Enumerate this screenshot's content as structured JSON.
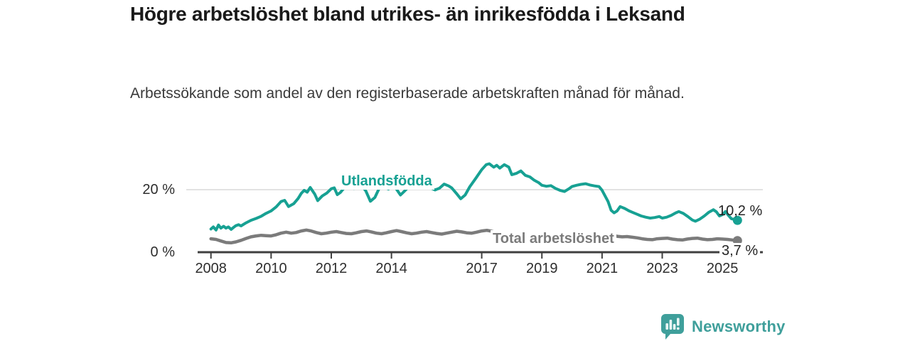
{
  "chart_data": {
    "type": "line",
    "title": "Högre arbetslöshet bland utrikes- än inrikesfödda i Leksand",
    "subtitle": "Arbetssökande som andel av den registerbaserade arbetskraften månad för månad.",
    "unit": "%",
    "grid": "horizontal gridline at 20 % only, x-axis baseline at 0 %",
    "legend_position": "inline-labels-on-lines",
    "xlim": [
      2008,
      2025.6
    ],
    "ylim": [
      0,
      30
    ],
    "yticks": [
      {
        "value": 20,
        "label": "20 %"
      },
      {
        "value": 0,
        "label": "0 %"
      }
    ],
    "xticks": [
      {
        "value": 2008,
        "label": "2008"
      },
      {
        "value": 2010,
        "label": "2010"
      },
      {
        "value": 2012,
        "label": "2012"
      },
      {
        "value": 2014,
        "label": "2014"
      },
      {
        "value": 2017,
        "label": "2017"
      },
      {
        "value": 2019,
        "label": "2019"
      },
      {
        "value": 2021,
        "label": "2021"
      },
      {
        "value": 2023,
        "label": "2023"
      },
      {
        "value": 2025,
        "label": "2025"
      }
    ],
    "colors": {
      "axis": "#3f3f3f",
      "grid": "#d8d8d8",
      "tick_text": "#2e2e2e"
    },
    "series": [
      {
        "id": "utlandsfodda",
        "name": "Utlandsfödda",
        "color": "#17a193",
        "end_label": "10,2 %",
        "end_value": 10.2,
        "points": [
          [
            2008.0,
            7.4
          ],
          [
            2008.08,
            8.1
          ],
          [
            2008.17,
            7.1
          ],
          [
            2008.25,
            8.7
          ],
          [
            2008.33,
            7.7
          ],
          [
            2008.42,
            8.3
          ],
          [
            2008.5,
            7.7
          ],
          [
            2008.58,
            8.1
          ],
          [
            2008.67,
            7.3
          ],
          [
            2008.75,
            7.9
          ],
          [
            2008.83,
            8.5
          ],
          [
            2008.92,
            8.8
          ],
          [
            2009.0,
            8.4
          ],
          [
            2009.17,
            9.4
          ],
          [
            2009.33,
            10.2
          ],
          [
            2009.5,
            10.8
          ],
          [
            2009.67,
            11.5
          ],
          [
            2009.83,
            12.4
          ],
          [
            2010.0,
            13.2
          ],
          [
            2010.17,
            14.5
          ],
          [
            2010.33,
            16.2
          ],
          [
            2010.45,
            16.6
          ],
          [
            2010.58,
            14.6
          ],
          [
            2010.75,
            15.5
          ],
          [
            2010.9,
            17.2
          ],
          [
            2011.0,
            18.8
          ],
          [
            2011.1,
            19.8
          ],
          [
            2011.2,
            19.2
          ],
          [
            2011.3,
            20.7
          ],
          [
            2011.45,
            18.6
          ],
          [
            2011.55,
            16.5
          ],
          [
            2011.7,
            18.0
          ],
          [
            2011.85,
            18.9
          ],
          [
            2012.0,
            20.3
          ],
          [
            2012.1,
            20.6
          ],
          [
            2012.2,
            18.4
          ],
          [
            2012.3,
            19.1
          ],
          [
            2012.45,
            20.8
          ],
          [
            2012.6,
            21.3
          ],
          [
            2012.75,
            20.4
          ],
          [
            2012.9,
            21.2
          ],
          [
            2013.0,
            21.4
          ],
          [
            2013.15,
            19.6
          ],
          [
            2013.3,
            16.3
          ],
          [
            2013.45,
            17.5
          ],
          [
            2013.6,
            20.6
          ],
          [
            2013.75,
            20.9
          ],
          [
            2013.9,
            20.2
          ],
          [
            2014.0,
            21.0
          ],
          [
            2014.15,
            20.4
          ],
          [
            2014.3,
            18.3
          ],
          [
            2014.45,
            19.7
          ],
          [
            2014.6,
            21.2
          ],
          [
            2014.75,
            21.5
          ],
          [
            2014.9,
            20.8
          ],
          [
            2015.0,
            21.2
          ],
          [
            2015.15,
            21.7
          ],
          [
            2015.3,
            20.6
          ],
          [
            2015.45,
            19.9
          ],
          [
            2015.6,
            20.5
          ],
          [
            2015.75,
            21.8
          ],
          [
            2015.9,
            21.2
          ],
          [
            2016.0,
            20.6
          ],
          [
            2016.15,
            18.9
          ],
          [
            2016.3,
            17.1
          ],
          [
            2016.45,
            18.3
          ],
          [
            2016.6,
            20.9
          ],
          [
            2016.8,
            23.6
          ],
          [
            2017.0,
            26.4
          ],
          [
            2017.15,
            28.0
          ],
          [
            2017.25,
            28.3
          ],
          [
            2017.4,
            27.2
          ],
          [
            2017.5,
            27.8
          ],
          [
            2017.6,
            26.9
          ],
          [
            2017.75,
            28.0
          ],
          [
            2017.9,
            27.2
          ],
          [
            2018.0,
            24.8
          ],
          [
            2018.15,
            25.2
          ],
          [
            2018.3,
            26.0
          ],
          [
            2018.45,
            24.6
          ],
          [
            2018.6,
            24.1
          ],
          [
            2018.75,
            23.0
          ],
          [
            2018.9,
            22.2
          ],
          [
            2019.0,
            21.4
          ],
          [
            2019.15,
            21.1
          ],
          [
            2019.3,
            21.3
          ],
          [
            2019.45,
            20.4
          ],
          [
            2019.6,
            19.8
          ],
          [
            2019.75,
            19.4
          ],
          [
            2019.9,
            20.3
          ],
          [
            2020.0,
            21.0
          ],
          [
            2020.15,
            21.4
          ],
          [
            2020.3,
            21.7
          ],
          [
            2020.45,
            21.9
          ],
          [
            2020.6,
            21.5
          ],
          [
            2020.75,
            21.2
          ],
          [
            2020.9,
            21.0
          ],
          [
            2021.0,
            19.8
          ],
          [
            2021.1,
            18.0
          ],
          [
            2021.2,
            16.2
          ],
          [
            2021.3,
            13.4
          ],
          [
            2021.4,
            12.6
          ],
          [
            2021.5,
            13.2
          ],
          [
            2021.6,
            14.6
          ],
          [
            2021.75,
            14.0
          ],
          [
            2021.9,
            13.2
          ],
          [
            2022.0,
            12.8
          ],
          [
            2022.15,
            12.2
          ],
          [
            2022.3,
            11.6
          ],
          [
            2022.45,
            11.2
          ],
          [
            2022.6,
            10.9
          ],
          [
            2022.75,
            11.1
          ],
          [
            2022.9,
            11.4
          ],
          [
            2023.0,
            10.9
          ],
          [
            2023.15,
            11.2
          ],
          [
            2023.3,
            11.8
          ],
          [
            2023.45,
            12.6
          ],
          [
            2023.55,
            13.0
          ],
          [
            2023.7,
            12.4
          ],
          [
            2023.85,
            11.4
          ],
          [
            2024.0,
            10.3
          ],
          [
            2024.1,
            9.9
          ],
          [
            2024.25,
            10.6
          ],
          [
            2024.4,
            11.6
          ],
          [
            2024.55,
            12.8
          ],
          [
            2024.7,
            13.6
          ],
          [
            2024.8,
            12.9
          ],
          [
            2024.9,
            11.6
          ],
          [
            2025.0,
            12.0
          ],
          [
            2025.1,
            13.0
          ],
          [
            2025.2,
            11.8
          ],
          [
            2025.3,
            10.7
          ],
          [
            2025.4,
            10.5
          ],
          [
            2025.5,
            10.2
          ]
        ]
      },
      {
        "id": "total",
        "name": "Total arbetslöshet",
        "color": "#7b7b7b",
        "end_label": "3,7 %",
        "end_value": 3.7,
        "points": [
          [
            2008.0,
            4.3
          ],
          [
            2008.17,
            4.1
          ],
          [
            2008.33,
            3.6
          ],
          [
            2008.5,
            3.1
          ],
          [
            2008.67,
            3.0
          ],
          [
            2008.83,
            3.3
          ],
          [
            2009.0,
            3.8
          ],
          [
            2009.17,
            4.4
          ],
          [
            2009.33,
            4.9
          ],
          [
            2009.5,
            5.2
          ],
          [
            2009.67,
            5.4
          ],
          [
            2009.83,
            5.3
          ],
          [
            2010.0,
            5.2
          ],
          [
            2010.17,
            5.6
          ],
          [
            2010.33,
            6.1
          ],
          [
            2010.5,
            6.4
          ],
          [
            2010.67,
            6.1
          ],
          [
            2010.83,
            6.3
          ],
          [
            2011.0,
            6.8
          ],
          [
            2011.17,
            7.1
          ],
          [
            2011.33,
            6.8
          ],
          [
            2011.5,
            6.3
          ],
          [
            2011.67,
            5.9
          ],
          [
            2011.83,
            6.1
          ],
          [
            2012.0,
            6.4
          ],
          [
            2012.17,
            6.6
          ],
          [
            2012.33,
            6.3
          ],
          [
            2012.5,
            6.0
          ],
          [
            2012.67,
            5.9
          ],
          [
            2012.83,
            6.2
          ],
          [
            2013.0,
            6.6
          ],
          [
            2013.17,
            6.8
          ],
          [
            2013.33,
            6.5
          ],
          [
            2013.5,
            6.1
          ],
          [
            2013.67,
            5.9
          ],
          [
            2013.83,
            6.2
          ],
          [
            2014.0,
            6.6
          ],
          [
            2014.17,
            6.9
          ],
          [
            2014.33,
            6.6
          ],
          [
            2014.5,
            6.2
          ],
          [
            2014.67,
            5.9
          ],
          [
            2014.83,
            6.1
          ],
          [
            2015.0,
            6.4
          ],
          [
            2015.17,
            6.6
          ],
          [
            2015.33,
            6.3
          ],
          [
            2015.5,
            6.0
          ],
          [
            2015.67,
            5.8
          ],
          [
            2015.83,
            6.1
          ],
          [
            2016.0,
            6.4
          ],
          [
            2016.17,
            6.7
          ],
          [
            2016.33,
            6.5
          ],
          [
            2016.5,
            6.2
          ],
          [
            2016.67,
            6.1
          ],
          [
            2016.83,
            6.4
          ],
          [
            2017.0,
            6.8
          ],
          [
            2017.17,
            7.0
          ],
          [
            2017.33,
            6.7
          ],
          [
            2017.5,
            6.3
          ],
          [
            2017.67,
            6.0
          ],
          [
            2017.83,
            6.2
          ],
          [
            2018.0,
            6.3
          ],
          [
            2018.17,
            6.1
          ],
          [
            2018.33,
            5.8
          ],
          [
            2018.5,
            5.5
          ],
          [
            2018.67,
            5.4
          ],
          [
            2018.83,
            5.7
          ],
          [
            2019.0,
            5.9
          ],
          [
            2019.17,
            6.0
          ],
          [
            2019.33,
            5.7
          ],
          [
            2019.5,
            5.5
          ],
          [
            2019.67,
            5.3
          ],
          [
            2019.83,
            5.6
          ],
          [
            2020.0,
            5.8
          ],
          [
            2020.17,
            6.1
          ],
          [
            2020.33,
            6.4
          ],
          [
            2020.5,
            6.3
          ],
          [
            2020.67,
            6.0
          ],
          [
            2020.83,
            6.1
          ],
          [
            2021.0,
            6.2
          ],
          [
            2021.17,
            5.9
          ],
          [
            2021.33,
            5.5
          ],
          [
            2021.5,
            5.1
          ],
          [
            2021.67,
            4.9
          ],
          [
            2021.83,
            5.0
          ],
          [
            2022.0,
            4.8
          ],
          [
            2022.17,
            4.6
          ],
          [
            2022.33,
            4.3
          ],
          [
            2022.5,
            4.1
          ],
          [
            2022.67,
            4.0
          ],
          [
            2022.83,
            4.3
          ],
          [
            2023.0,
            4.4
          ],
          [
            2023.17,
            4.5
          ],
          [
            2023.33,
            4.2
          ],
          [
            2023.5,
            4.0
          ],
          [
            2023.67,
            3.9
          ],
          [
            2023.83,
            4.2
          ],
          [
            2024.0,
            4.4
          ],
          [
            2024.17,
            4.5
          ],
          [
            2024.33,
            4.2
          ],
          [
            2024.5,
            4.0
          ],
          [
            2024.67,
            4.1
          ],
          [
            2024.83,
            4.3
          ],
          [
            2025.0,
            4.2
          ],
          [
            2025.17,
            4.1
          ],
          [
            2025.33,
            3.9
          ],
          [
            2025.5,
            3.7
          ]
        ]
      }
    ]
  },
  "footer": {
    "brand": "Newsworthy",
    "logo_icon": "bar-chart-speech-bubble-icon",
    "brand_color": "#3f9f9b"
  }
}
